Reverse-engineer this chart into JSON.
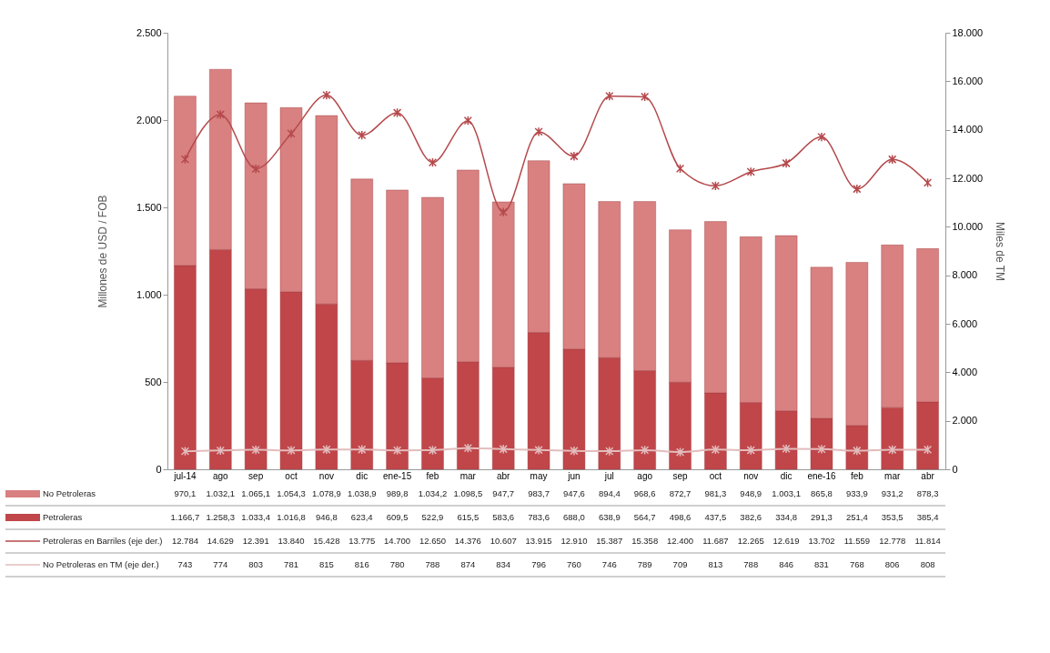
{
  "chart_data": {
    "type": "bar",
    "stacked": true,
    "categories": [
      "jul-14",
      "ago",
      "sep",
      "oct",
      "nov",
      "dic",
      "ene-15",
      "feb",
      "mar",
      "abr",
      "may",
      "jun",
      "jul",
      "ago",
      "sep",
      "oct",
      "nov",
      "dic",
      "ene-16",
      "feb",
      "mar",
      "abr"
    ],
    "ylabel": "Millones de USD / FOB",
    "y2label": "Miles de TM",
    "ylim": [
      0,
      2500
    ],
    "yticks": [
      0,
      500,
      {
        "value": 1000,
        "label": "1.000"
      },
      {
        "value": 1500,
        "label": "1.500"
      },
      {
        "value": 2000,
        "label": "2.000"
      },
      {
        "value": 2500,
        "label": "2.500"
      }
    ],
    "y2lim": [
      0,
      18000
    ],
    "y2ticks": [
      0,
      {
        "value": 2000,
        "label": "2.000"
      },
      {
        "value": 4000,
        "label": "4.000"
      },
      {
        "value": 6000,
        "label": "6.000"
      },
      {
        "value": 8000,
        "label": "8.000"
      },
      {
        "value": 10000,
        "label": "10.000"
      },
      {
        "value": 12000,
        "label": "12.000"
      },
      {
        "value": 14000,
        "label": "14.000"
      },
      {
        "value": 16000,
        "label": "16.000"
      },
      {
        "value": 18000,
        "label": "18.000"
      }
    ],
    "legend": "bottom",
    "grid": false,
    "series": [
      {
        "name": "Petroleras",
        "type": "bar",
        "color": "#c0464a",
        "values": [
          1166.7,
          1258.3,
          1033.4,
          1016.8,
          946.8,
          623.4,
          609.5,
          522.9,
          615.5,
          583.6,
          783.6,
          688.0,
          638.9,
          564.7,
          498.6,
          437.5,
          382.6,
          334.8,
          291.3,
          251.4,
          353.5,
          385.4
        ],
        "value_labels": [
          "1.166,7",
          "1.258,3",
          "1.033,4",
          "1.016,8",
          "946,8",
          "623,4",
          "609,5",
          "522,9",
          "615,5",
          "583,6",
          "783,6",
          "688,0",
          "638,9",
          "564,7",
          "498,6",
          "437,5",
          "382,6",
          "334,8",
          "291,3",
          "251,4",
          "353,5",
          "385,4"
        ]
      },
      {
        "name": "No Petroleras",
        "type": "bar",
        "color": "#d98080",
        "values": [
          970.1,
          1032.1,
          1065.1,
          1054.3,
          1078.9,
          1038.9,
          989.8,
          1034.2,
          1098.5,
          947.7,
          983.7,
          947.6,
          894.4,
          968.6,
          872.7,
          981.3,
          948.9,
          1003.1,
          865.8,
          933.9,
          931.2,
          878.3
        ],
        "value_labels": [
          "970,1",
          "1.032,1",
          "1.065,1",
          "1.054,3",
          "1.078,9",
          "1.038,9",
          "989,8",
          "1.034,2",
          "1.098,5",
          "947,7",
          "983,7",
          "947,6",
          "894,4",
          "968,6",
          "872,7",
          "981,3",
          "948,9",
          "1.003,1",
          "865,8",
          "933,9",
          "931,2",
          "878,3"
        ]
      },
      {
        "name": "Petroleras en Barriles (eje der.)",
        "type": "line",
        "axis": "y2",
        "marker": "cross",
        "color": "#b5494c",
        "values": [
          12784,
          14629,
          12391,
          13840,
          15428,
          13775,
          14700,
          12650,
          14376,
          10607,
          13915,
          12910,
          15387,
          15358,
          12400,
          11687,
          12265,
          12619,
          13702,
          11559,
          12778,
          11814
        ],
        "value_labels": [
          "12.784",
          "14.629",
          "12.391",
          "13.840",
          "15.428",
          "13.775",
          "14.700",
          "12.650",
          "14.376",
          "10.607",
          "13.915",
          "12.910",
          "15.387",
          "15.358",
          "12.400",
          "11.687",
          "12.265",
          "12.619",
          "13.702",
          "11.559",
          "12.778",
          "11.814"
        ]
      },
      {
        "name": "No Petroleras en TM (eje der.)",
        "type": "line",
        "axis": "y2",
        "marker": "cross",
        "color": "#e3bcbc",
        "values": [
          743,
          774,
          803,
          781,
          815,
          816,
          780,
          788,
          874,
          834,
          796,
          760,
          746,
          789,
          709,
          813,
          788,
          846,
          831,
          768,
          806,
          808
        ],
        "value_labels": [
          "743",
          "774",
          "803",
          "781",
          "815",
          "816",
          "780",
          "788",
          "874",
          "834",
          "796",
          "760",
          "746",
          "789",
          "709",
          "813",
          "788",
          "846",
          "831",
          "768",
          "806",
          "808"
        ]
      }
    ]
  }
}
